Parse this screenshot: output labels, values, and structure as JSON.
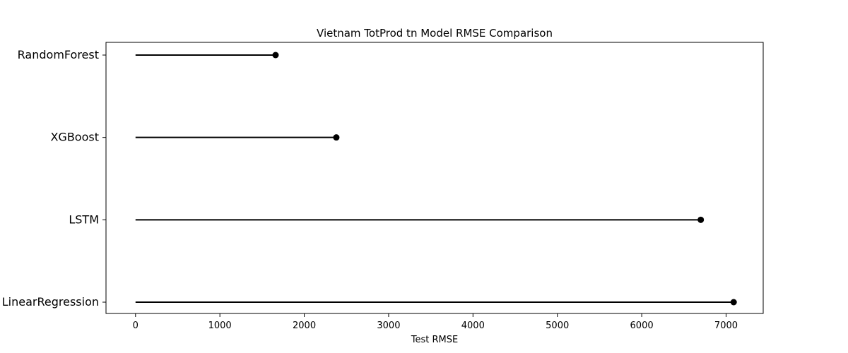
{
  "chart_data": {
    "type": "lollipop",
    "title": "Vietnam TotProd tn Model RMSE Comparison",
    "xlabel": "Test RMSE",
    "ylabel": "",
    "categories": [
      "RandomForest",
      "XGBoost",
      "LSTM",
      "LinearRegression"
    ],
    "values": [
      1660,
      2380,
      6700,
      7090
    ],
    "xlim": [
      -350,
      7440
    ],
    "xticks": [
      0,
      1000,
      2000,
      3000,
      4000,
      5000,
      6000,
      7000
    ],
    "xtick_labels": [
      "0",
      "1000",
      "2000",
      "3000",
      "4000",
      "5000",
      "6000",
      "7000"
    ],
    "grid": false,
    "color": "#000000"
  }
}
